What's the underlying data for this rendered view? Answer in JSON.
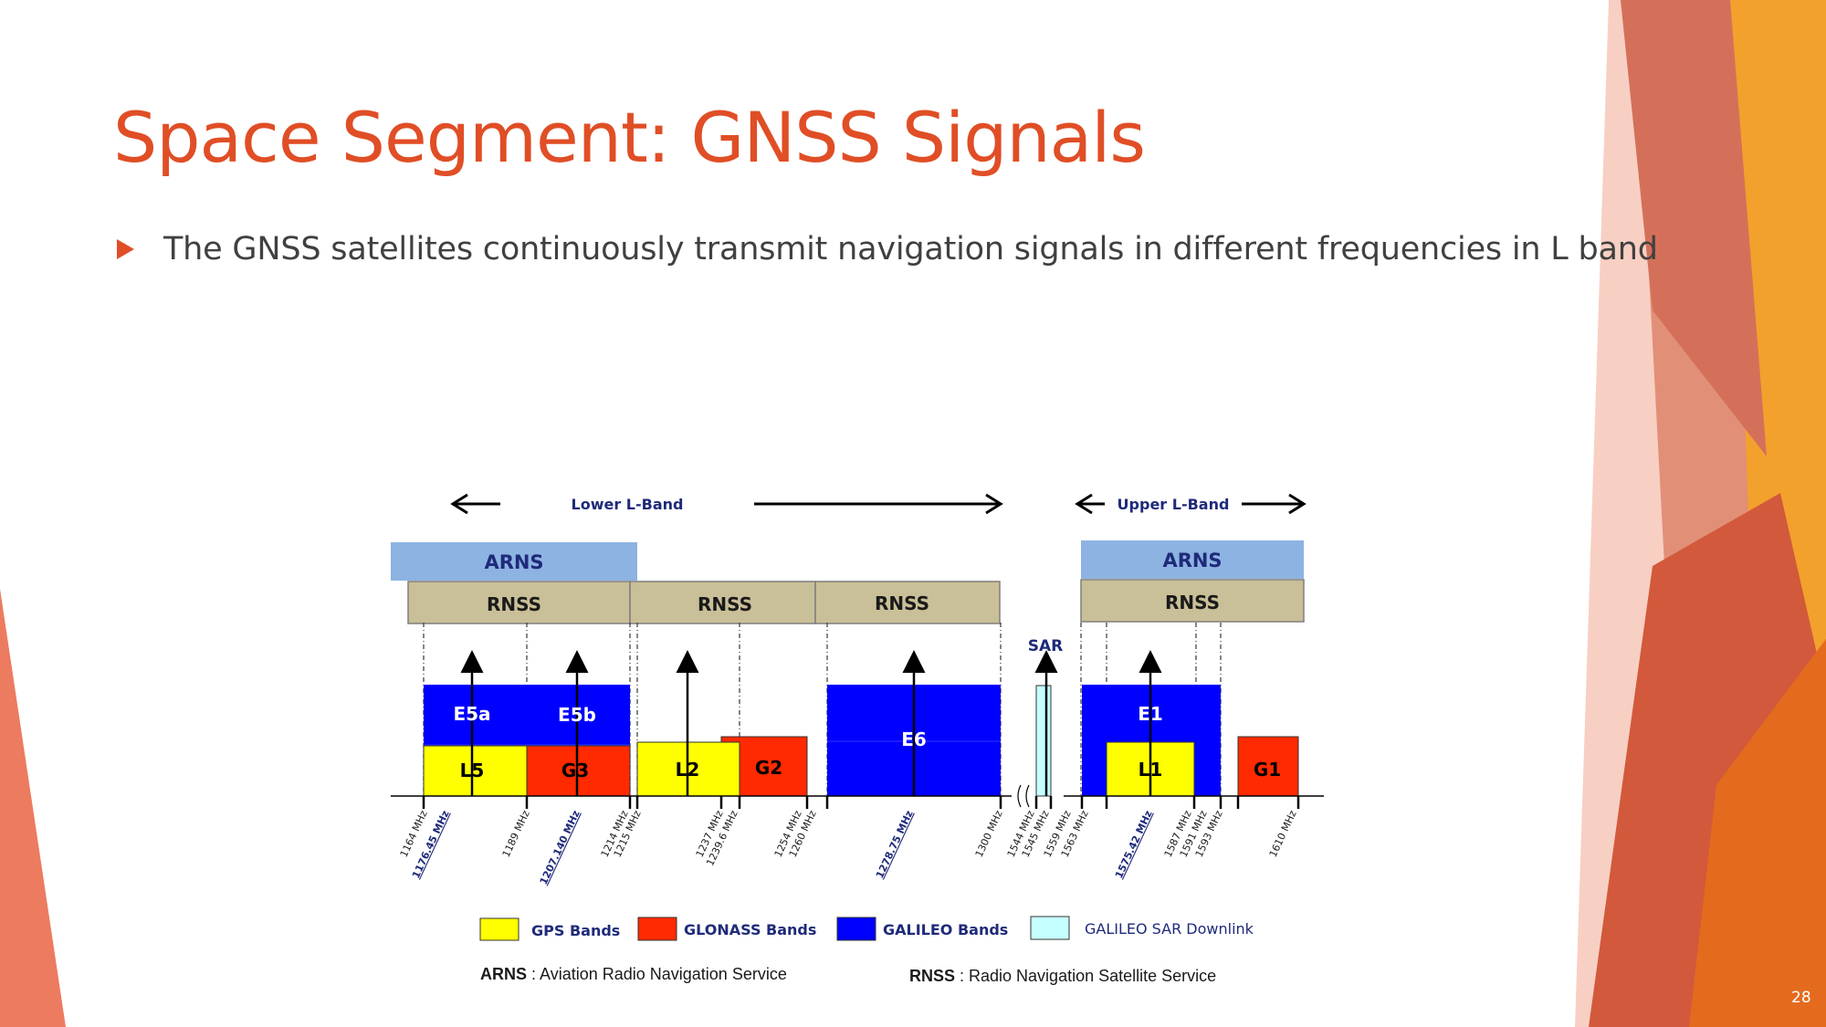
{
  "slide": {
    "title": "Space Segment: GNSS Signals",
    "bullet": "The GNSS satellites continuously transmit navigation signals in different frequencies in L band",
    "page_number": "28"
  },
  "diagram": {
    "lower_band_label": "Lower L-Band",
    "upper_band_label": "Upper L-Band",
    "arns_label": "ARNS",
    "rnss_label": "RNSS",
    "sar_label": "SAR",
    "bands": {
      "e5a": "E5a",
      "e5b": "E5b",
      "e6": "E6",
      "e1": "E1",
      "l5": "L5",
      "g3": "G3",
      "l2": "L2",
      "g2": "G2",
      "l1": "L1",
      "g1": "G1"
    },
    "frequencies": [
      "1164 MHz",
      "1176.45 MHz",
      "1189 MHz",
      "1207.140 MHz",
      "1214 MHz",
      "1215 MHz",
      "1237 MHz",
      "1239.6 MHz",
      "1254 MHz",
      "1260 MHz",
      "1278.75 MHz",
      "1300 MHz",
      "1544 MHz",
      "1545 MHz",
      "1559 MHz",
      "1563 MHz",
      "1575.42 MHz",
      "1587 MHz",
      "1591 MHz",
      "1593 MHz",
      "1610 MHz"
    ],
    "legend": {
      "gps": "GPS Bands",
      "glonass": "GLONASS Bands",
      "galileo": "GALILEO Bands",
      "sar": "GALILEO SAR Downlink"
    },
    "notes": {
      "arns_abbr": "ARNS",
      "arns_desc": " : Aviation Radio Navigation Service",
      "rnss_abbr": "RNSS",
      "rnss_desc": " : Radio Navigation Satellite Service"
    },
    "colors": {
      "gps": "#ffff00",
      "glonass": "#ff2a00",
      "galileo": "#0000ff",
      "sar": "#c6ffff",
      "arns": "#8db3e2",
      "rnss": "#c9bf98",
      "label": "#1f2a7a"
    }
  }
}
